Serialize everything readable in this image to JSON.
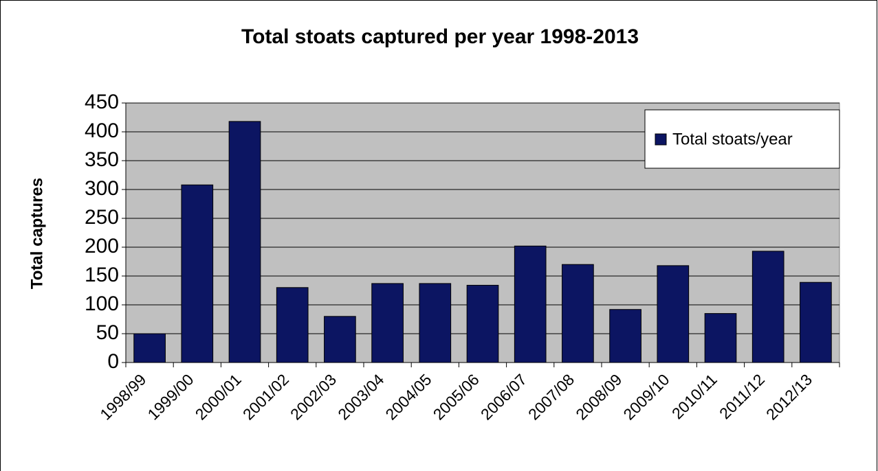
{
  "chart_data": {
    "type": "bar",
    "title": "Total stoats captured per year 1998-2013",
    "y_label": "Total captures",
    "categories": [
      "1998/99",
      "1999/00",
      "2000/01",
      "2001/02",
      "2002/03",
      "2003/04",
      "2004/05",
      "2005/06",
      "2006/07",
      "2007/08",
      "2008/09",
      "2009/10",
      "2010/11",
      "2011/12",
      "2012/13"
    ],
    "series": [
      {
        "name": "Total stoats/year",
        "color": "#0c1562",
        "values": [
          50,
          308,
          418,
          130,
          80,
          137,
          137,
          134,
          202,
          170,
          92,
          168,
          85,
          193,
          139
        ]
      }
    ],
    "ylim": [
      0,
      450
    ],
    "yticks": [
      0,
      50,
      100,
      150,
      200,
      250,
      300,
      350,
      400,
      450
    ],
    "grid": true,
    "legend": "top-right",
    "plot_background": "#c0c0c0"
  }
}
